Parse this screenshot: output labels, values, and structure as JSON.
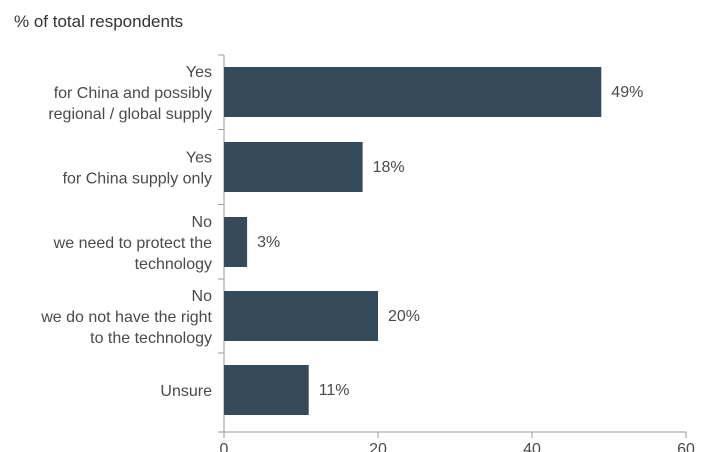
{
  "colors": {
    "bar": "#354b5c",
    "axis": "#9a9a9a",
    "text": "#4a4a4a"
  },
  "chart_data": {
    "type": "bar",
    "orientation": "horizontal",
    "title": "% of total respondents",
    "categories": [
      [
        "Yes",
        "for China and possibly",
        "regional / global supply"
      ],
      [
        "Yes",
        "for China supply only"
      ],
      [
        "No",
        "we need to protect the",
        "technology"
      ],
      [
        "No",
        "we do not have the right",
        "to the technology"
      ],
      [
        "Unsure"
      ]
    ],
    "values": [
      49,
      18,
      3,
      20,
      11
    ],
    "data_labels": [
      "49%",
      "18%",
      "3%",
      "20%",
      "11%"
    ],
    "xlim": [
      0,
      60
    ],
    "xticks": [
      0,
      20,
      40,
      60
    ],
    "xtick_labels": [
      "0",
      "20",
      "40",
      "60"
    ],
    "grid": false,
    "legend": "none"
  }
}
